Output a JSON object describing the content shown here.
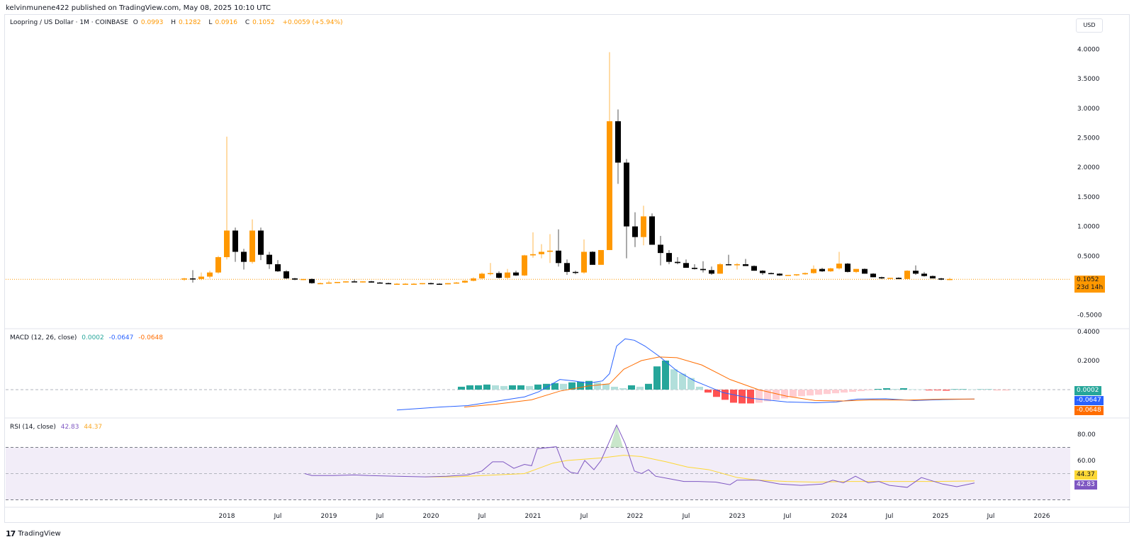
{
  "header": {
    "published": "kelvinmunene422 published on TradingView.com, May 08, 2025 10:10 UTC",
    "symbol": "Loopring / US Dollar · 1M · COINBASE",
    "open_label": "O",
    "open": "0.0993",
    "high_label": "H",
    "high": "0.1282",
    "low_label": "L",
    "low": "0.0916",
    "close_label": "C",
    "close": "0.1052",
    "change": "+0.0059 (+5.94%)",
    "currency_button": "USD"
  },
  "price_axis": {
    "ticks": [
      "4.0000",
      "3.5000",
      "3.0000",
      "2.5000",
      "2.0000",
      "1.5000",
      "1.0000",
      "0.5000",
      "-0.5000"
    ],
    "last_price": "0.1052",
    "countdown": "23d 14h"
  },
  "macd": {
    "label": "MACD (12, 26, close)",
    "histogram": "0.0002",
    "macd": "-0.0647",
    "signal": "-0.0648",
    "ticks": [
      "0.4000",
      "0.2000"
    ]
  },
  "rsi": {
    "label": "RSI (14, close)",
    "rsi": "42.83",
    "ma": "44.37",
    "ticks": [
      "80.00",
      "60.00"
    ]
  },
  "time_axis": {
    "ticks": [
      "2018",
      "Jul",
      "2019",
      "Jul",
      "2020",
      "Jul",
      "2021",
      "Jul",
      "2022",
      "Jul",
      "2023",
      "Jul",
      "2024",
      "Jul",
      "2025",
      "Jul",
      "2026"
    ]
  },
  "footer": {
    "brand": "TradingView",
    "logo": "17"
  },
  "colors": {
    "up": "#ff9800",
    "down": "#000000",
    "macd": "#2962ff",
    "signal": "#ff6d00",
    "hist_up": "#26a69a",
    "hist_up_light": "#b2dfdb",
    "hist_down": "#ff5252",
    "hist_down_light": "#ffcdd2",
    "rsi": "#7e57c2",
    "rsi_ma": "#fdd835"
  },
  "chart_data": [
    {
      "type": "candlestick",
      "title": "Loopring / US Dollar · 1M · COINBASE",
      "ylabel": "USD",
      "ylim": [
        -0.5,
        4.0
      ],
      "x_start": "2017-12",
      "interval": "1M",
      "ohlc": [
        [
          0.1,
          0.13,
          0.08,
          0.12
        ],
        [
          0.12,
          0.26,
          0.05,
          0.11
        ],
        [
          0.11,
          0.22,
          0.09,
          0.15
        ],
        [
          0.15,
          0.25,
          0.12,
          0.22
        ],
        [
          0.22,
          0.5,
          0.2,
          0.48
        ],
        [
          0.48,
          2.52,
          0.44,
          0.93
        ],
        [
          0.93,
          0.98,
          0.4,
          0.57
        ],
        [
          0.57,
          0.62,
          0.27,
          0.4
        ],
        [
          0.4,
          1.12,
          0.37,
          0.93
        ],
        [
          0.93,
          0.98,
          0.43,
          0.52
        ],
        [
          0.52,
          0.57,
          0.28,
          0.36
        ],
        [
          0.36,
          0.43,
          0.23,
          0.24
        ],
        [
          0.24,
          0.26,
          0.11,
          0.12
        ],
        [
          0.12,
          0.13,
          0.09,
          0.1
        ],
        [
          0.1,
          0.11,
          0.09,
          0.11
        ],
        [
          0.11,
          0.12,
          0.03,
          0.04
        ],
        [
          0.04,
          0.05,
          0.03,
          0.04
        ],
        [
          0.04,
          0.08,
          0.03,
          0.05
        ],
        [
          0.05,
          0.06,
          0.04,
          0.06
        ],
        [
          0.06,
          0.07,
          0.05,
          0.07
        ],
        [
          0.07,
          0.1,
          0.06,
          0.06
        ],
        [
          0.06,
          0.07,
          0.05,
          0.07
        ],
        [
          0.07,
          0.08,
          0.05,
          0.05
        ],
        [
          0.05,
          0.06,
          0.04,
          0.04
        ],
        [
          0.04,
          0.05,
          0.03,
          0.03
        ],
        [
          0.03,
          0.04,
          0.02,
          0.03
        ],
        [
          0.03,
          0.04,
          0.02,
          0.03
        ],
        [
          0.03,
          0.04,
          0.02,
          0.03
        ],
        [
          0.03,
          0.04,
          0.02,
          0.04
        ],
        [
          0.04,
          0.05,
          0.02,
          0.03
        ],
        [
          0.03,
          0.04,
          0.01,
          0.02
        ],
        [
          0.02,
          0.04,
          0.02,
          0.04
        ],
        [
          0.04,
          0.06,
          0.03,
          0.05
        ],
        [
          0.05,
          0.09,
          0.04,
          0.08
        ],
        [
          0.08,
          0.14,
          0.07,
          0.12
        ],
        [
          0.12,
          0.22,
          0.1,
          0.2
        ],
        [
          0.2,
          0.38,
          0.17,
          0.21
        ],
        [
          0.21,
          0.24,
          0.12,
          0.13
        ],
        [
          0.13,
          0.28,
          0.11,
          0.22
        ],
        [
          0.22,
          0.25,
          0.16,
          0.17
        ],
        [
          0.17,
          0.52,
          0.16,
          0.51
        ],
        [
          0.51,
          0.9,
          0.47,
          0.53
        ],
        [
          0.53,
          0.7,
          0.46,
          0.57
        ],
        [
          0.57,
          0.87,
          0.38,
          0.59
        ],
        [
          0.59,
          0.95,
          0.32,
          0.38
        ],
        [
          0.38,
          0.44,
          0.18,
          0.23
        ],
        [
          0.23,
          0.25,
          0.19,
          0.22
        ],
        [
          0.22,
          0.78,
          0.2,
          0.57
        ],
        [
          0.57,
          0.58,
          0.35,
          0.35
        ],
        [
          0.35,
          0.6,
          0.35,
          0.6
        ],
        [
          0.6,
          3.95,
          0.6,
          2.78
        ],
        [
          2.78,
          2.98,
          1.72,
          2.08
        ],
        [
          2.08,
          2.14,
          0.46,
          1.0
        ],
        [
          1.0,
          1.24,
          0.65,
          0.82
        ],
        [
          0.82,
          1.35,
          0.68,
          1.17
        ],
        [
          1.17,
          1.22,
          0.69,
          0.69
        ],
        [
          0.69,
          0.84,
          0.34,
          0.55
        ],
        [
          0.55,
          0.6,
          0.36,
          0.4
        ],
        [
          0.4,
          0.48,
          0.36,
          0.38
        ],
        [
          0.38,
          0.44,
          0.3,
          0.3
        ],
        [
          0.3,
          0.36,
          0.27,
          0.28
        ],
        [
          0.28,
          0.41,
          0.22,
          0.26
        ],
        [
          0.26,
          0.32,
          0.18,
          0.2
        ],
        [
          0.2,
          0.38,
          0.2,
          0.36
        ],
        [
          0.36,
          0.52,
          0.34,
          0.35
        ],
        [
          0.35,
          0.38,
          0.27,
          0.36
        ],
        [
          0.36,
          0.45,
          0.33,
          0.33
        ],
        [
          0.33,
          0.34,
          0.25,
          0.25
        ],
        [
          0.25,
          0.26,
          0.18,
          0.21
        ],
        [
          0.21,
          0.22,
          0.19,
          0.2
        ],
        [
          0.2,
          0.21,
          0.16,
          0.17
        ],
        [
          0.17,
          0.18,
          0.17,
          0.18
        ],
        [
          0.18,
          0.19,
          0.16,
          0.19
        ],
        [
          0.19,
          0.22,
          0.18,
          0.21
        ],
        [
          0.21,
          0.34,
          0.2,
          0.28
        ],
        [
          0.28,
          0.3,
          0.23,
          0.24
        ],
        [
          0.24,
          0.3,
          0.23,
          0.29
        ],
        [
          0.29,
          0.57,
          0.27,
          0.37
        ],
        [
          0.37,
          0.38,
          0.22,
          0.23
        ],
        [
          0.23,
          0.28,
          0.21,
          0.28
        ],
        [
          0.28,
          0.29,
          0.2,
          0.2
        ],
        [
          0.2,
          0.21,
          0.14,
          0.14
        ],
        [
          0.14,
          0.15,
          0.11,
          0.12
        ],
        [
          0.12,
          0.13,
          0.11,
          0.13
        ],
        [
          0.13,
          0.14,
          0.11,
          0.11
        ],
        [
          0.11,
          0.26,
          0.11,
          0.25
        ],
        [
          0.25,
          0.34,
          0.18,
          0.2
        ],
        [
          0.2,
          0.23,
          0.15,
          0.16
        ],
        [
          0.16,
          0.17,
          0.12,
          0.12
        ],
        [
          0.12,
          0.13,
          0.09,
          0.1
        ],
        [
          0.1,
          0.13,
          0.09,
          0.11
        ]
      ],
      "last_price": 0.1052
    },
    {
      "type": "bar+line",
      "title": "MACD (12, 26, close)",
      "ylim": [
        -0.2,
        0.42
      ],
      "series": [
        {
          "name": "Histogram",
          "last": 0.0002
        },
        {
          "name": "MACD",
          "last": -0.0647,
          "peak": 0.35,
          "peak_date": "2021-11"
        },
        {
          "name": "Signal",
          "last": -0.0648,
          "peak": 0.23,
          "peak_date": "2022-03"
        }
      ]
    },
    {
      "type": "line",
      "title": "RSI (14, close)",
      "bands": [
        30,
        50,
        70
      ],
      "series": [
        {
          "name": "RSI",
          "last": 42.83,
          "peak": 87,
          "peak_date": "2021-11"
        },
        {
          "name": "RSI MA",
          "last": 44.37
        }
      ]
    }
  ]
}
